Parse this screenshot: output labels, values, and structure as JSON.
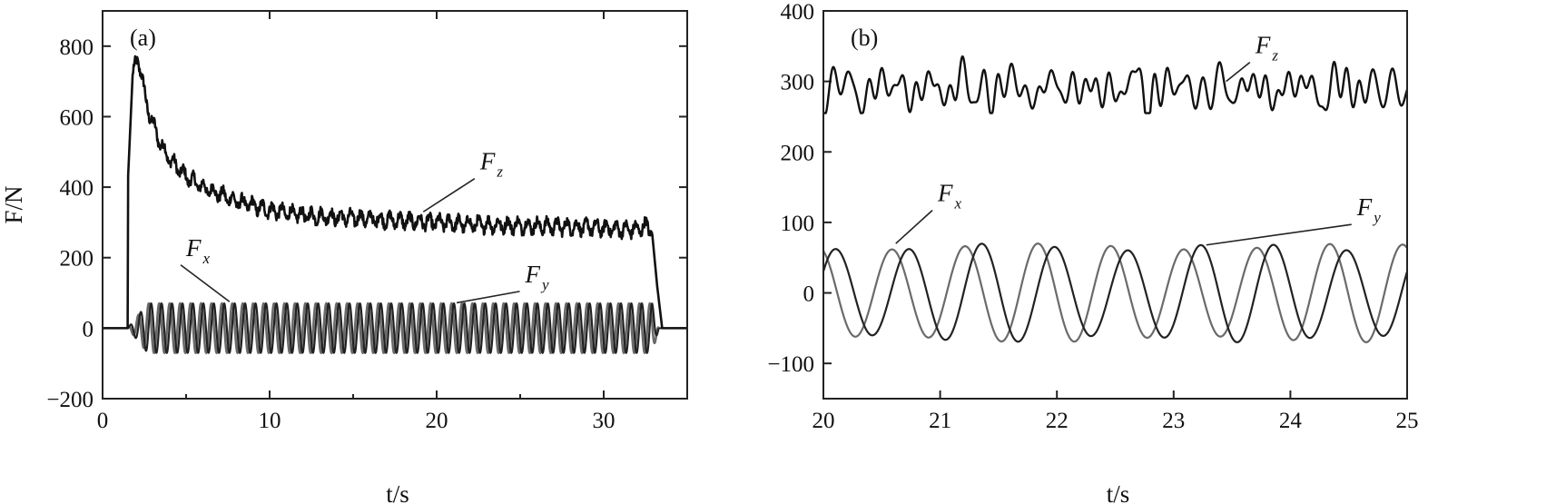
{
  "chart_data": [
    {
      "panel_label": "(a)",
      "type": "line",
      "xlabel": "t/s",
      "ylabel": "F/N",
      "xlim": [
        0,
        35
      ],
      "ylim": [
        -200,
        900
      ],
      "xticks": [
        0,
        10,
        20,
        30
      ],
      "yticks": [
        -200,
        0,
        200,
        400,
        600,
        800
      ],
      "xtick_labels": [
        "0",
        "10",
        "20",
        "30"
      ],
      "ytick_labels": [
        "−200",
        "0",
        "200",
        "400",
        "600",
        "800"
      ],
      "grid": false,
      "series": [
        {
          "name": "F_z",
          "color": "#111111",
          "x": [
            0,
            1.5,
            1.5,
            1.8,
            2.1,
            2.3,
            2.6,
            3,
            3.5,
            4,
            5,
            6,
            8,
            10,
            12,
            14,
            16,
            18,
            20,
            22,
            24,
            26,
            28,
            30,
            31,
            32,
            32.6,
            32.9,
            33.2,
            33.5,
            35
          ],
          "y": [
            0,
            0,
            400,
            720,
            765,
            730,
            640,
            580,
            520,
            480,
            430,
            400,
            360,
            335,
            320,
            315,
            310,
            305,
            300,
            295,
            292,
            290,
            288,
            285,
            280,
            280,
            290,
            270,
            120,
            0,
            0
          ],
          "oscillation_amplitude": 30
        },
        {
          "name": "F_x",
          "color": "#222222",
          "amplitude": 70,
          "frequency_hz": 1.6,
          "t_start": 1.5,
          "t_end": 33.3
        },
        {
          "name": "F_y",
          "color": "#6a6a6a",
          "amplitude": 70,
          "frequency_hz": 1.6,
          "t_start": 1.5,
          "t_end": 33.3
        }
      ],
      "annotations": [
        {
          "main": "F",
          "sub": "z",
          "x": 22.6,
          "y": 450,
          "tip_x": 19.2,
          "tip_y": 330
        },
        {
          "main": "F",
          "sub": "x",
          "x": 5,
          "y": 205,
          "tip_x": 7.6,
          "tip_y": 75
        },
        {
          "main": "F",
          "sub": "y",
          "x": 25.3,
          "y": 130,
          "tip_x": 21.2,
          "tip_y": 72
        }
      ]
    },
    {
      "panel_label": "(b)",
      "type": "line",
      "xlabel": "t/s",
      "ylabel": "",
      "xlim": [
        20,
        25
      ],
      "ylim": [
        -150,
        400
      ],
      "xticks": [
        20,
        21,
        22,
        23,
        24,
        25
      ],
      "yticks": [
        -100,
        0,
        100,
        200,
        300,
        400
      ],
      "xtick_labels": [
        "20",
        "21",
        "22",
        "23",
        "24",
        "25"
      ],
      "ytick_labels": [
        "−100",
        "0",
        "100",
        "200",
        "300",
        "400"
      ],
      "grid": false,
      "series": [
        {
          "name": "F_z",
          "color": "#111111",
          "mean": 290,
          "min": 255,
          "max": 345
        },
        {
          "name": "F_x",
          "color": "#222222",
          "amplitude": 70,
          "frequency_hz": 1.6
        },
        {
          "name": "F_y",
          "color": "#6a6a6a",
          "amplitude": 70,
          "frequency_hz": 1.6
        }
      ],
      "annotations": [
        {
          "main": "F",
          "sub": "z",
          "x": 23.7,
          "y": 340,
          "tip_x": 23.45,
          "tip_y": 300
        },
        {
          "main": "F",
          "sub": "x",
          "x": 20.98,
          "y": 130,
          "tip_x": 20.62,
          "tip_y": 70
        },
        {
          "main": "F",
          "sub": "y",
          "x": 24.57,
          "y": 110,
          "tip_x": 23.28,
          "tip_y": 68
        }
      ]
    }
  ]
}
